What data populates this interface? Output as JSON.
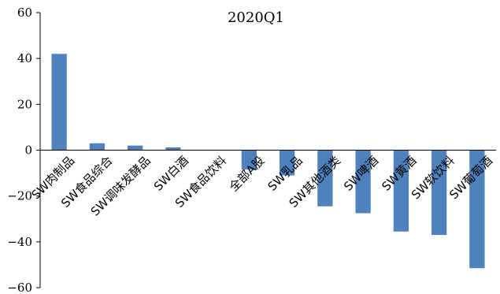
{
  "chart_data": {
    "type": "bar",
    "title": "2020Q1",
    "xlabel": "",
    "ylabel": "",
    "categories": [
      "SW肉制品",
      "SW食品综合",
      "SW调味发酵品",
      "SW白酒",
      "SW食品饮料",
      "全部A股",
      "SW乳品",
      "SW其他酒类",
      "SW啤酒",
      "SW黄酒",
      "SW软饮料",
      "SW葡萄酒"
    ],
    "values": [
      42,
      3,
      2,
      1.2,
      0,
      -8.5,
      -11,
      -24.5,
      -27.5,
      -35.5,
      -37,
      -51.5
    ],
    "ylim": [
      -60,
      60
    ],
    "yticks": [
      "60",
      "40",
      "20",
      "0",
      "−20",
      "−40",
      "−60"
    ],
    "ytick_values": [
      60,
      40,
      20,
      0,
      -20,
      -40,
      -60
    ],
    "bar_color": "#4f81bd",
    "grid": false,
    "legend": "none"
  }
}
